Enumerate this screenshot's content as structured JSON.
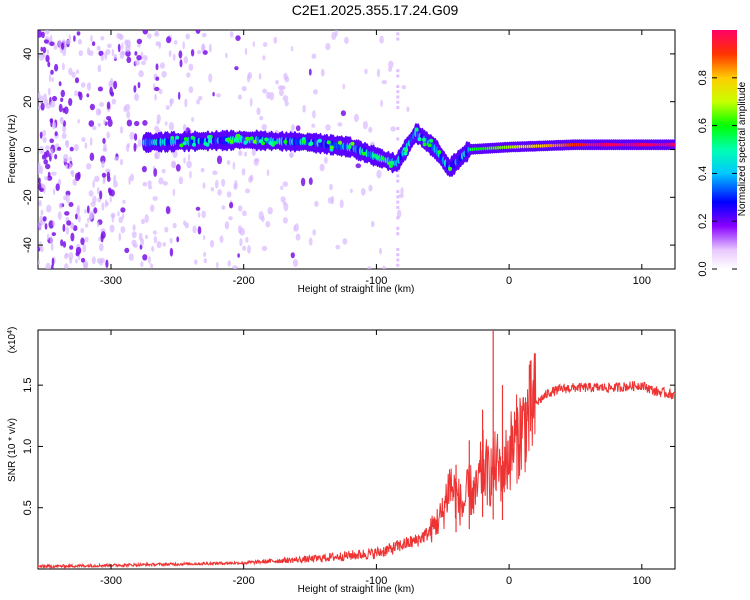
{
  "title": "C2E1.2025.355.17.24.G09",
  "chart_data": [
    {
      "type": "heatmap",
      "title": "C2E1.2025.355.17.24.G09",
      "xlabel": "Height of straight line (km)",
      "ylabel": "Frequency (Hz)",
      "xlim": [
        -355,
        125
      ],
      "ylim": [
        -50,
        50
      ],
      "xticks": [
        -300,
        -200,
        -100,
        0,
        100
      ],
      "yticks": [
        -40,
        -20,
        0,
        20,
        40
      ],
      "colorbar": {
        "label": "Normalized spectral amplitude",
        "range": [
          0,
          1
        ],
        "ticks": [
          "0.0",
          "0.2",
          "0.4",
          "0.6",
          "0.8"
        ]
      },
      "ridge": [
        {
          "x": -270,
          "freq": 3
        },
        {
          "x": -200,
          "freq": 4
        },
        {
          "x": -150,
          "freq": 3
        },
        {
          "x": -120,
          "freq": 1
        },
        {
          "x": -100,
          "freq": -3
        },
        {
          "x": -85,
          "freq": -6
        },
        {
          "x": -70,
          "freq": 7
        },
        {
          "x": -55,
          "freq": 0
        },
        {
          "x": -45,
          "freq": -8
        },
        {
          "x": -30,
          "freq": 0
        },
        {
          "x": 0,
          "freq": 1
        },
        {
          "x": 50,
          "freq": 2
        },
        {
          "x": 125,
          "freq": 2
        }
      ]
    },
    {
      "type": "line",
      "xlabel": "Height of straight line (km)",
      "ylabel": "SNR (10 * v/v)",
      "y_multiplier": "(x10",
      "y_multiplier_exp": "4",
      "y_multiplier_close": ")",
      "xlim": [
        -355,
        125
      ],
      "ylim": [
        0,
        1.95
      ],
      "xticks": [
        -300,
        -200,
        -100,
        0,
        100
      ],
      "yticks": [
        "0.5",
        "1.0",
        "1.5"
      ],
      "series": [
        {
          "name": "SNR",
          "color": "#ee3333",
          "x": [
            -355,
            -300,
            -250,
            -200,
            -170,
            -150,
            -130,
            -110,
            -100,
            -90,
            -80,
            -70,
            -60,
            -50,
            -45,
            -40,
            -35,
            -30,
            -25,
            -20,
            -15,
            -10,
            -5,
            0,
            10,
            20,
            30,
            40,
            50,
            60,
            80,
            100,
            110,
            125
          ],
          "y": [
            0.02,
            0.03,
            0.04,
            0.05,
            0.07,
            0.08,
            0.1,
            0.12,
            0.13,
            0.16,
            0.2,
            0.23,
            0.3,
            0.45,
            0.7,
            0.6,
            0.5,
            0.65,
            0.6,
            0.85,
            0.75,
            0.85,
            0.8,
            0.95,
            1.15,
            1.35,
            1.44,
            1.47,
            1.48,
            1.48,
            1.48,
            1.5,
            1.45,
            1.42
          ]
        }
      ],
      "spikes": [
        {
          "x": -40,
          "y": 0.85
        },
        {
          "x": -30,
          "y": 1.05
        },
        {
          "x": -20,
          "y": 1.3
        },
        {
          "x": -12,
          "y": 1.97
        },
        {
          "x": -5,
          "y": 1.5
        }
      ]
    }
  ]
}
